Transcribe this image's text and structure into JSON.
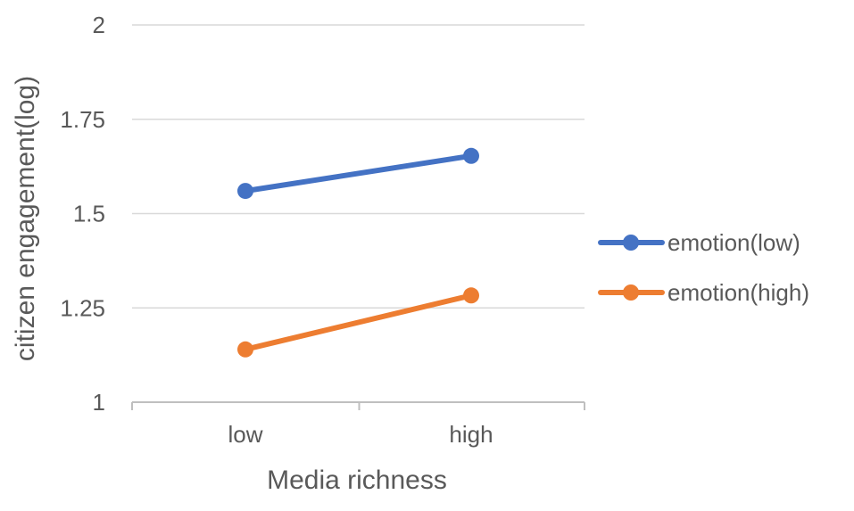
{
  "chart_data": {
    "type": "line",
    "title": "",
    "xlabel": "Media richness",
    "ylabel": "citizen engagement(log)",
    "categories": [
      "low",
      "high"
    ],
    "ylim": [
      1,
      2
    ],
    "yticks": [
      "1",
      "1.25",
      "1.5",
      "1.75",
      "2"
    ],
    "grid": true,
    "legend_position": "right",
    "series": [
      {
        "name": "emotion(low)",
        "values": [
          1.56,
          1.653
        ],
        "color": "#4472C4"
      },
      {
        "name": "emotion(high)",
        "values": [
          1.14,
          1.283
        ],
        "color": "#ED7D31"
      }
    ]
  }
}
